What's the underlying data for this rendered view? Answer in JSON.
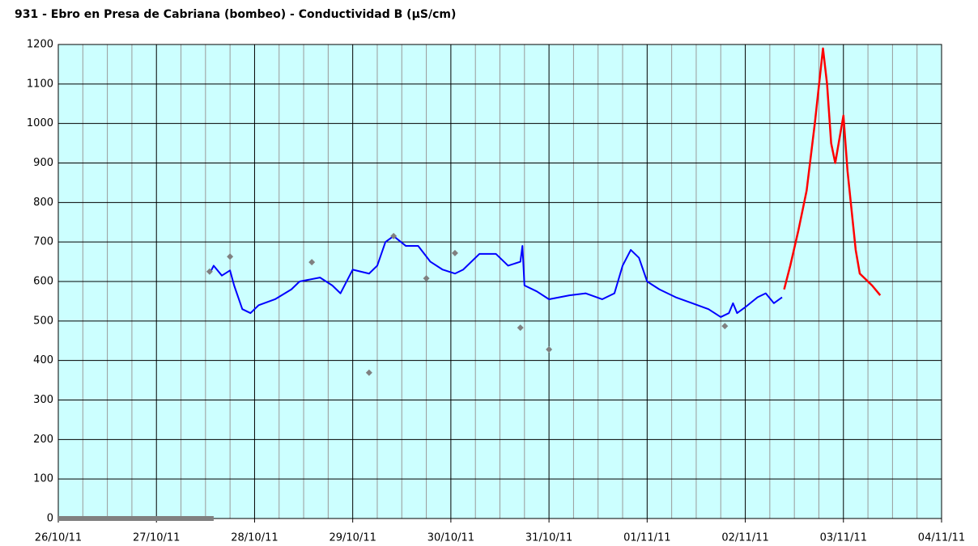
{
  "chart_data": {
    "type": "line",
    "title": "931 - Ebro en Presa de Cabriana (bombeo) - Conductividad B (µS/cm)",
    "xlim": [
      "2011-10-26",
      "2011-11-04"
    ],
    "xticks": [
      {
        "value": "2011-10-26",
        "label": "26/10/11"
      },
      {
        "value": "2011-10-27",
        "label": "27/10/11"
      },
      {
        "value": "2011-10-28",
        "label": "28/10/11"
      },
      {
        "value": "2011-10-29",
        "label": "29/10/11"
      },
      {
        "value": "2011-10-30",
        "label": "30/10/11"
      },
      {
        "value": "2011-10-31",
        "label": "31/10/11"
      },
      {
        "value": "2011-11-01",
        "label": "01/11/11"
      },
      {
        "value": "2011-11-02",
        "label": "02/11/11"
      },
      {
        "value": "2011-11-03",
        "label": "03/11/11"
      },
      {
        "value": "2011-11-04",
        "label": "04/11/11"
      }
    ],
    "x_minor_per_major": 4,
    "ylim": [
      0,
      1200
    ],
    "yticks": [
      0,
      100,
      200,
      300,
      400,
      500,
      600,
      700,
      800,
      900,
      1000,
      1100,
      1200
    ],
    "grid": true,
    "background": "#ccffff",
    "series": [
      {
        "type": "line",
        "color": "#808080",
        "width": 6,
        "x": [
          "2011-10-26T00:00",
          "2011-10-27T14:00"
        ],
        "values": [
          0,
          0
        ]
      },
      {
        "type": "line",
        "color": "#0000ff",
        "width": 2,
        "x": [
          "2011-10-27T13:00",
          "2011-10-27T14:00",
          "2011-10-27T16:00",
          "2011-10-27T18:00",
          "2011-10-27T19:00",
          "2011-10-27T21:00",
          "2011-10-27T23:00",
          "2011-10-28T01:00",
          "2011-10-28T05:00",
          "2011-10-28T09:00",
          "2011-10-28T11:00",
          "2011-10-28T16:00",
          "2011-10-28T19:00",
          "2011-10-28T21:00",
          "2011-10-29T00:00",
          "2011-10-29T04:00",
          "2011-10-29T06:00",
          "2011-10-29T08:00",
          "2011-10-29T10:00",
          "2011-10-29T13:00",
          "2011-10-29T16:00",
          "2011-10-29T19:00",
          "2011-10-29T22:00",
          "2011-10-30T01:00",
          "2011-10-30T03:00",
          "2011-10-30T07:00",
          "2011-10-30T11:00",
          "2011-10-30T14:00",
          "2011-10-30T17:00",
          "2011-10-30T17:30",
          "2011-10-30T18:00",
          "2011-10-30T21:00",
          "2011-10-31T00:00",
          "2011-10-31T05:00",
          "2011-10-31T09:00",
          "2011-10-31T13:00",
          "2011-10-31T16:00",
          "2011-10-31T18:00",
          "2011-10-31T20:00",
          "2011-10-31T22:00",
          "2011-11-01T00:00",
          "2011-11-01T03:00",
          "2011-11-01T07:00",
          "2011-11-01T11:00",
          "2011-11-01T15:00",
          "2011-11-01T18:00",
          "2011-11-01T20:00",
          "2011-11-01T21:00",
          "2011-11-01T22:00",
          "2011-11-02T00:00",
          "2011-11-02T03:00",
          "2011-11-02T05:00",
          "2011-11-02T07:00",
          "2011-11-02T09:00"
        ],
        "values": [
          620,
          640,
          615,
          628,
          590,
          530,
          520,
          540,
          555,
          580,
          600,
          610,
          590,
          570,
          630,
          620,
          640,
          700,
          715,
          690,
          690,
          650,
          630,
          620,
          630,
          670,
          670,
          640,
          650,
          690,
          590,
          575,
          555,
          565,
          570,
          555,
          570,
          640,
          680,
          660,
          600,
          580,
          560,
          545,
          530,
          510,
          520,
          545,
          520,
          535,
          560,
          570,
          545,
          560
        ]
      },
      {
        "type": "line",
        "color": "#ff0000",
        "width": 2.5,
        "x": [
          "2011-11-02T09:30",
          "2011-11-02T11:00",
          "2011-11-02T13:00",
          "2011-11-02T15:00",
          "2011-11-02T17:00",
          "2011-11-02T19:00",
          "2011-11-02T20:00",
          "2011-11-02T21:00",
          "2011-11-02T22:00",
          "2011-11-03T00:00",
          "2011-11-03T01:00",
          "2011-11-03T02:00",
          "2011-11-03T03:00",
          "2011-11-03T04:00",
          "2011-11-03T07:00",
          "2011-11-03T09:00"
        ],
        "values": [
          580,
          640,
          730,
          830,
          1000,
          1190,
          1100,
          950,
          900,
          1020,
          880,
          780,
          680,
          620,
          590,
          565
        ]
      },
      {
        "type": "scatter",
        "color": "#808080",
        "x": [
          "2011-10-27T13:00",
          "2011-10-27T18:00",
          "2011-10-28T14:00",
          "2011-10-29T04:00",
          "2011-10-29T10:00",
          "2011-10-29T18:00",
          "2011-10-30T01:00",
          "2011-10-30T17:00",
          "2011-10-31T00:00",
          "2011-11-01T19:00"
        ],
        "values": [
          625,
          663,
          649,
          369,
          715,
          608,
          672,
          483,
          428,
          487
        ]
      }
    ]
  }
}
